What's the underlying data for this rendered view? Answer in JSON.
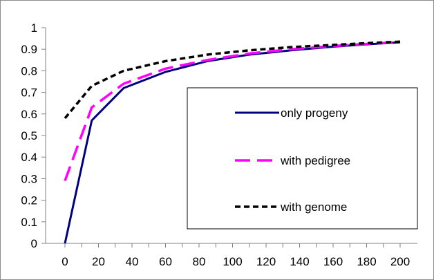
{
  "chart_data": {
    "type": "line",
    "title": "",
    "xlabel": "",
    "ylabel": "",
    "xlim": [
      0,
      200
    ],
    "ylim": [
      0,
      1
    ],
    "x_ticks": [
      0,
      20,
      40,
      60,
      80,
      100,
      120,
      140,
      160,
      180,
      200
    ],
    "y_ticks": [
      0,
      0.1,
      0.2,
      0.3,
      0.4,
      0.5,
      0.6,
      0.7,
      0.8,
      0.9,
      1
    ],
    "x_tick_labels": [
      "0",
      "20",
      "40",
      "60",
      "80",
      "100",
      "120",
      "140",
      "160",
      "180",
      "200"
    ],
    "y_tick_labels": [
      "0",
      "0.1",
      "0.2",
      "0.3",
      "0.4",
      "0.5",
      "0.6",
      "0.7",
      "0.8",
      "0.9",
      "1"
    ],
    "grid": false,
    "legend_position": "right",
    "series": [
      {
        "name": "only progeny",
        "color": "#000080",
        "dash": "solid",
        "x": [
          0,
          16,
          35,
          60,
          85,
          110,
          135,
          160,
          185,
          200
        ],
        "y": [
          0,
          0.57,
          0.72,
          0.795,
          0.845,
          0.875,
          0.895,
          0.912,
          0.925,
          0.932
        ]
      },
      {
        "name": "with pedigree",
        "color": "#ff00ff",
        "dash": "long-dash",
        "x": [
          0,
          16,
          35,
          60,
          85,
          110,
          135,
          160,
          185,
          200
        ],
        "y": [
          0.29,
          0.63,
          0.74,
          0.81,
          0.85,
          0.88,
          0.9,
          0.915,
          0.927,
          0.933
        ]
      },
      {
        "name": "with genome",
        "color": "#000000",
        "dash": "short-dash",
        "x": [
          0,
          16,
          35,
          60,
          85,
          110,
          135,
          160,
          185,
          200
        ],
        "y": [
          0.58,
          0.73,
          0.8,
          0.845,
          0.875,
          0.895,
          0.91,
          0.92,
          0.93,
          0.935
        ]
      }
    ]
  }
}
